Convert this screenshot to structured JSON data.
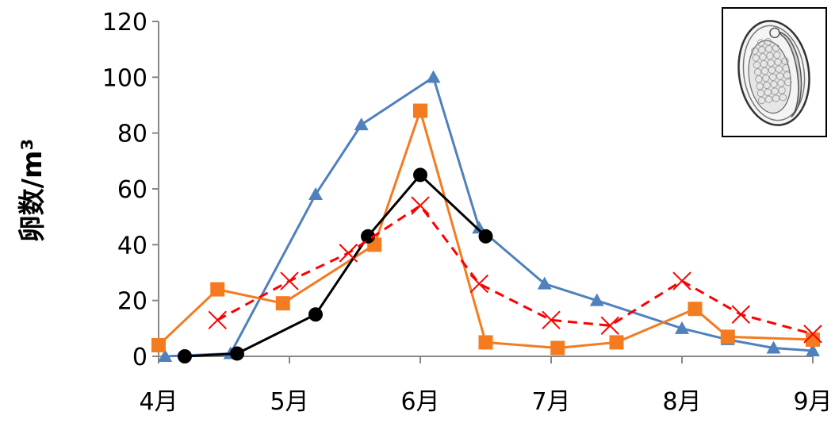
{
  "chart_data": {
    "type": "line",
    "ylabel": "卵数/m³",
    "ylim": [
      0,
      120
    ],
    "yticks": [
      "0",
      "20",
      "40",
      "60",
      "80",
      "100",
      "120"
    ],
    "xticks": [
      "4月",
      "5月",
      "6月",
      "7月",
      "8月",
      "9月"
    ],
    "xtick_values": [
      4,
      5,
      6,
      7,
      8,
      9
    ],
    "xlim": [
      4,
      9
    ],
    "grid": false,
    "legend": "none",
    "series": [
      {
        "color": "#4F81BD",
        "line_style": "solid",
        "marker": "triangle",
        "x": [
          4.05,
          4.55,
          5.2,
          5.55,
          6.1,
          6.45,
          6.95,
          7.35,
          8.0,
          8.35,
          8.7,
          9.0
        ],
        "y": [
          0,
          1,
          58,
          83,
          100,
          46,
          26,
          20,
          10,
          6,
          3,
          2
        ]
      },
      {
        "color": "#F47B20",
        "line_style": "solid",
        "marker": "square",
        "x": [
          4.0,
          4.45,
          4.95,
          5.65,
          6.0,
          6.5,
          7.05,
          7.5,
          8.1,
          8.35,
          9.0
        ],
        "y": [
          4,
          24,
          19,
          40,
          88,
          5,
          3,
          5,
          17,
          7,
          6
        ]
      },
      {
        "color": "#000000",
        "line_style": "solid",
        "marker": "circle",
        "x": [
          4.2,
          4.6,
          5.2,
          5.6,
          6.0,
          6.5
        ],
        "y": [
          0,
          1,
          15,
          43,
          65,
          43
        ]
      },
      {
        "color": "#FF0000",
        "line_style": "dashed",
        "marker": "x",
        "x": [
          4.45,
          5.0,
          5.45,
          6.0,
          6.45,
          7.0,
          7.45,
          8.0,
          8.45,
          9.0
        ],
        "y": [
          13,
          27,
          37,
          54,
          26,
          13,
          11,
          27,
          15,
          8
        ]
      }
    ]
  },
  "inset": {
    "icon": "parasite-egg-icon",
    "frame_color": "#000000"
  }
}
